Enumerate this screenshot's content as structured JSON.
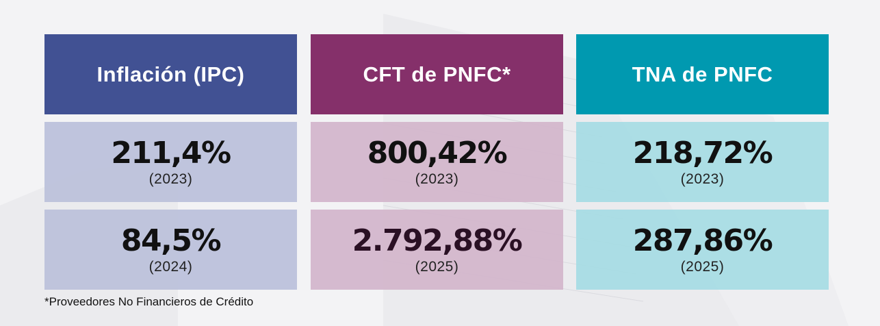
{
  "columns": [
    {
      "header": "Inflación (IPC)",
      "color": "#415193",
      "rows": [
        {
          "value": "211,4%",
          "year": "(2023)"
        },
        {
          "value": "84,5%",
          "year": "(2024)"
        }
      ]
    },
    {
      "header": "CFT de PNFC*",
      "color": "#85306a",
      "rows": [
        {
          "value": "800,42%",
          "year": "(2023)"
        },
        {
          "value": "2.792,88%",
          "year": "(2025)"
        }
      ]
    },
    {
      "header": "TNA de PNFC",
      "color": "#0099b0",
      "rows": [
        {
          "value": "218,72%",
          "year": "(2023)"
        },
        {
          "value": "287,86%",
          "year": "(2025)"
        }
      ]
    }
  ],
  "footnote": "*Proveedores No Financieros de Crédito"
}
